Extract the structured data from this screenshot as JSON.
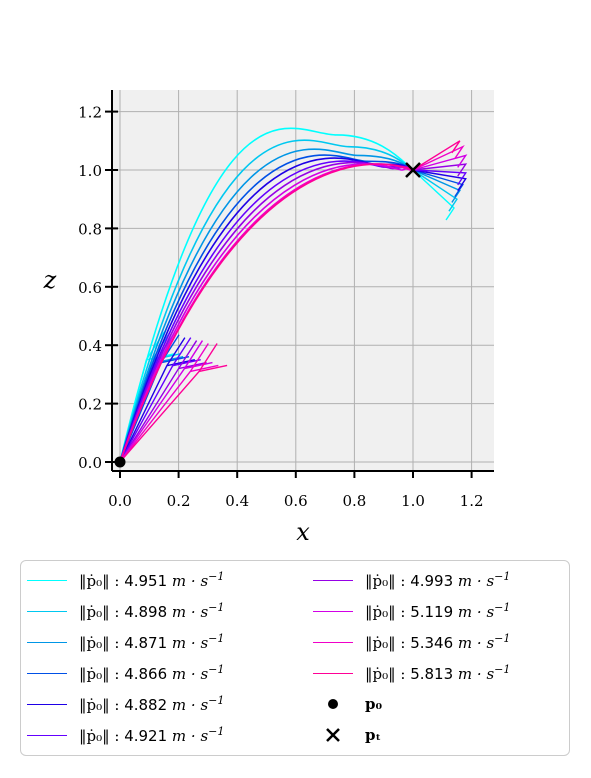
{
  "chart_data": {
    "type": "line",
    "xlabel": "x",
    "ylabel": "z",
    "xlim": [
      -0.03,
      1.28
    ],
    "ylim": [
      -0.03,
      1.28
    ],
    "x_ticks": [
      "0.0",
      "0.2",
      "0.4",
      "0.6",
      "0.8",
      "1.0",
      "1.2"
    ],
    "y_ticks": [
      "0.0",
      "0.2",
      "0.4",
      "0.6",
      "0.8",
      "1.0",
      "1.2"
    ],
    "grid": true,
    "legend_position": "below",
    "start_point": {
      "label": "p0",
      "x": 0.0,
      "z": 0.0
    },
    "target_point": {
      "label": "pt",
      "x": 1.0,
      "z": 1.0
    },
    "series": [
      {
        "value": "4.951",
        "unit": "m · s",
        "color": "#00ffff",
        "peak": [
          0.74,
          1.12
        ],
        "start_tip": [
          0.09,
          0.35
        ],
        "end_tip": [
          1.14,
          0.87
        ]
      },
      {
        "value": "4.898",
        "unit": "m · s",
        "color": "#00c8f0",
        "peak": [
          0.78,
          1.08
        ],
        "start_tip": [
          0.11,
          0.35
        ],
        "end_tip": [
          1.15,
          0.9
        ]
      },
      {
        "value": "4.871",
        "unit": "m · s",
        "color": "#0096e6",
        "peak": [
          0.81,
          1.05
        ],
        "start_tip": [
          0.12,
          0.34
        ],
        "end_tip": [
          1.16,
          0.93
        ]
      },
      {
        "value": "4.866",
        "unit": "m · s",
        "color": "#0050e6",
        "peak": [
          0.84,
          1.03
        ],
        "start_tip": [
          0.14,
          0.34
        ],
        "end_tip": [
          1.17,
          0.95
        ]
      },
      {
        "value": "4.882",
        "unit": "m · s",
        "color": "#1e00e6",
        "peak": [
          0.87,
          1.02
        ],
        "start_tip": [
          0.16,
          0.33
        ],
        "end_tip": [
          1.18,
          0.97
        ]
      },
      {
        "value": "4.921",
        "unit": "m · s",
        "color": "#6400ff",
        "peak": [
          0.9,
          1.01
        ],
        "start_tip": [
          0.18,
          0.33
        ],
        "end_tip": [
          1.18,
          0.99
        ]
      },
      {
        "value": "4.993",
        "unit": "m · s",
        "color": "#9600e6",
        "peak": [
          0.93,
          1.005
        ],
        "start_tip": [
          0.2,
          0.32
        ],
        "end_tip": [
          1.18,
          1.02
        ]
      },
      {
        "value": "5.119",
        "unit": "m · s",
        "color": "#d200e6",
        "peak": [
          0.96,
          1.0
        ],
        "start_tip": [
          0.22,
          0.32
        ],
        "end_tip": [
          1.18,
          1.05
        ]
      },
      {
        "value": "5.346",
        "unit": "m · s",
        "color": "#f000c8",
        "peak": [
          0.99,
          1.0
        ],
        "start_tip": [
          0.24,
          0.31
        ],
        "end_tip": [
          1.17,
          1.08
        ]
      },
      {
        "value": "5.813",
        "unit": "m · s",
        "color": "#ff0096",
        "peak": [
          1.0,
          1.0
        ],
        "start_tip": [
          0.27,
          0.31
        ],
        "end_tip": [
          1.16,
          1.1
        ]
      }
    ]
  },
  "legend": {
    "norm_symbol": "‖ṗ₀‖ :",
    "exponent": "−1",
    "p0_label": "p₀",
    "pt_label": "pₜ"
  }
}
